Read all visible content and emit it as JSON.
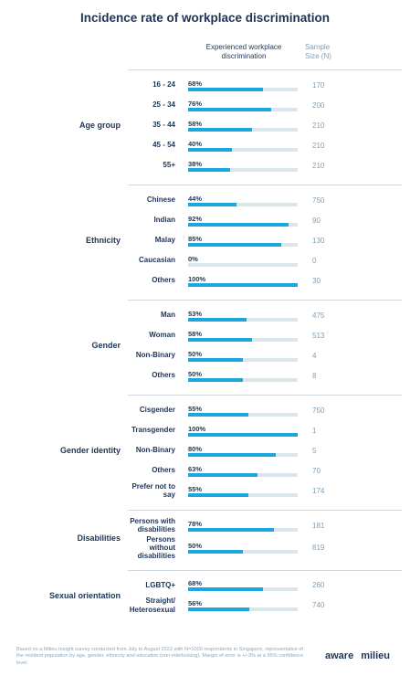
{
  "chart_data": {
    "type": "bar",
    "title": "Incidence rate of workplace discrimination",
    "value_header": "Experienced workplace discrimination",
    "sample_header": "Sample Size (N)",
    "color": "#1ba6df",
    "track_color": "#dbe6ec",
    "xlim": [
      0,
      100
    ],
    "groups": [
      {
        "name": "Age group",
        "categories": [
          "16 - 24",
          "25 - 34",
          "35 - 44",
          "45 - 54",
          "55+"
        ],
        "values": [
          68,
          76,
          58,
          40,
          38
        ],
        "value_labels": [
          "68%",
          "76%",
          "58%",
          "40%",
          "38%"
        ],
        "sample_sizes": [
          170,
          200,
          210,
          210,
          210
        ]
      },
      {
        "name": "Ethnicity",
        "categories": [
          "Chinese",
          "Indian",
          "Malay",
          "Caucasian",
          "Others"
        ],
        "values": [
          44,
          92,
          85,
          0,
          100
        ],
        "value_labels": [
          "44%",
          "92%",
          "85%",
          "0%",
          "100%"
        ],
        "sample_sizes": [
          750,
          90,
          130,
          0,
          30
        ]
      },
      {
        "name": "Gender",
        "categories": [
          "Man",
          "Woman",
          "Non-Binary",
          "Others"
        ],
        "values": [
          53,
          58,
          50,
          50
        ],
        "value_labels": [
          "53%",
          "58%",
          "50%",
          "50%"
        ],
        "sample_sizes": [
          475,
          513,
          4,
          8
        ]
      },
      {
        "name": "Gender identity",
        "categories": [
          "Cisgender",
          "Transgender",
          "Non-Binary",
          "Others",
          "Prefer not to say"
        ],
        "values": [
          55,
          100,
          80,
          63,
          55
        ],
        "value_labels": [
          "55%",
          "100%",
          "80%",
          "63%",
          "55%"
        ],
        "sample_sizes": [
          750,
          1,
          5,
          70,
          174
        ]
      },
      {
        "name": "Disabilities",
        "categories": [
          "Persons with disabilities",
          "Persons without disabilities"
        ],
        "values": [
          78,
          50
        ],
        "value_labels": [
          "78%",
          "50%"
        ],
        "sample_sizes": [
          181,
          819
        ]
      },
      {
        "name": "Sexual orientation",
        "categories": [
          "LGBTQ+",
          "Straight/ Heterosexual"
        ],
        "values": [
          68,
          56
        ],
        "value_labels": [
          "68%",
          "56%"
        ],
        "sample_sizes": [
          260,
          740
        ]
      }
    ],
    "footnote": "Based on a Milieu Insight survey conducted from July to August 2022 with N=1000 respondents in Singapore, representative of the resident population by age, gender, ethnicity and education (non-interlocking). Margin of error is +/-3% at a 95% confidence level.",
    "logos": [
      "aware",
      "milieu"
    ]
  }
}
